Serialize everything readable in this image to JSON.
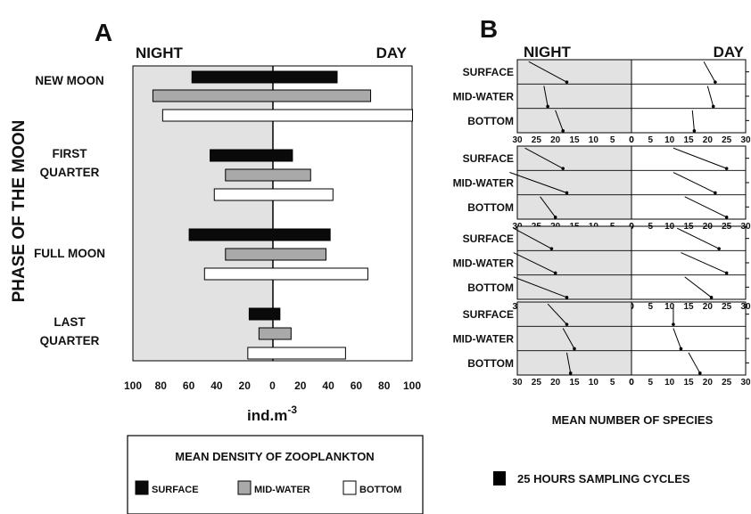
{
  "colors": {
    "night_shade": "#e2e2e2",
    "surface": "#0a0a0a",
    "mid_water": "#a9a9a9",
    "bottom": "#ffffff",
    "line": "#000000"
  },
  "chart_data": [
    {
      "panel": "A",
      "type": "bar",
      "orientation": "horizontal diverging",
      "header_left": "NIGHT",
      "header_right": "DAY",
      "ylabel": "PHASE OF THE MOON",
      "xlabel": "ind.m",
      "xlabel_exp": "-3",
      "xlim": [
        -100,
        100
      ],
      "x_ticks": [
        "100",
        "80",
        "60",
        "40",
        "20",
        "0",
        "20",
        "40",
        "60",
        "80",
        "100"
      ],
      "categories": [
        "NEW MOON",
        "FIRST QUARTER",
        "FULL MOON",
        "LAST QUARTER"
      ],
      "category_lines": [
        [
          "NEW MOON"
        ],
        [
          "FIRST",
          "QUARTER"
        ],
        [
          "FULL MOON"
        ],
        [
          "LAST",
          "QUARTER"
        ]
      ],
      "series": [
        {
          "name": "SURFACE",
          "night": [
            58,
            45,
            60,
            17
          ],
          "day": [
            46,
            14,
            41,
            5
          ]
        },
        {
          "name": "MID-WATER",
          "night": [
            86,
            34,
            34,
            10
          ],
          "day": [
            70,
            27,
            38,
            13
          ]
        },
        {
          "name": "BOTTOM",
          "night": [
            79,
            42,
            49,
            18
          ],
          "day": [
            100,
            43,
            68,
            52
          ]
        }
      ],
      "legend": {
        "title": "MEAN DENSITY OF ZOOPLANKTON",
        "placement": "bottom",
        "items": [
          "SURFACE",
          "MID-WATER",
          "BOTTOM"
        ]
      }
    },
    {
      "panel": "B",
      "type": "line",
      "header_left": "NIGHT",
      "header_right": "DAY",
      "xlabel": "MEAN NUMBER OF SPECIES",
      "xlim": [
        0,
        30
      ],
      "x_ticks_night": [
        "30",
        "25",
        "20",
        "15",
        "10",
        "5",
        "0"
      ],
      "x_ticks_day": [
        "0",
        "5",
        "10",
        "15",
        "20",
        "25",
        "30"
      ],
      "depth_labels": [
        "SURFACE",
        "MID-WATER",
        "BOTTOM"
      ],
      "legend_note": "25 HOURS SAMPLING CYCLES",
      "groups": [
        {
          "moon_phase": "NEW MOON",
          "night": [
            [
              27,
              17
            ],
            [
              23,
              22
            ],
            [
              20,
              18
            ]
          ],
          "day": [
            [
              19,
              22
            ],
            [
              20,
              21.5
            ],
            [
              16,
              16.5
            ]
          ]
        },
        {
          "moon_phase": "FIRST QUARTER",
          "night": [
            [
              28,
              18
            ],
            [
              32,
              17
            ],
            [
              24,
              20
            ]
          ],
          "day": [
            [
              11,
              25
            ],
            [
              11,
              22
            ],
            [
              14,
              25
            ]
          ]
        },
        {
          "moon_phase": "FULL MOON",
          "night": [
            [
              31,
              21
            ],
            [
              31,
              20
            ],
            [
              31,
              17
            ]
          ],
          "day": [
            [
              12,
              23
            ],
            [
              13,
              25
            ],
            [
              14,
              21
            ]
          ]
        },
        {
          "moon_phase": "LAST QUARTER",
          "night": [
            [
              22,
              17
            ],
            [
              18,
              15
            ],
            [
              17,
              16
            ]
          ],
          "day": [
            [
              11,
              11
            ],
            [
              11,
              13
            ],
            [
              15,
              18
            ]
          ]
        }
      ]
    }
  ]
}
